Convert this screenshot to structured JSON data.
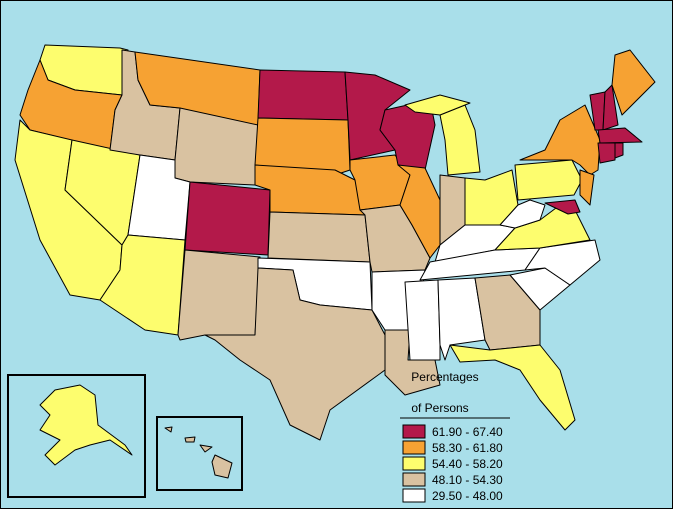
{
  "legend": {
    "title_lines": [
      "Percentages",
      "of Persons"
    ],
    "items": [
      {
        "label": "61.90 - 67.40",
        "color": "#b3194a"
      },
      {
        "label": "58.30 - 61.80",
        "color": "#f6a233"
      },
      {
        "label": "54.40 - 58.20",
        "color": "#fdfd6e"
      },
      {
        "label": "48.10 - 54.30",
        "color": "#d9c2a1"
      },
      {
        "label": "29.50 - 48.00",
        "color": "#ffffff"
      }
    ]
  },
  "background": "#a9dfea"
}
